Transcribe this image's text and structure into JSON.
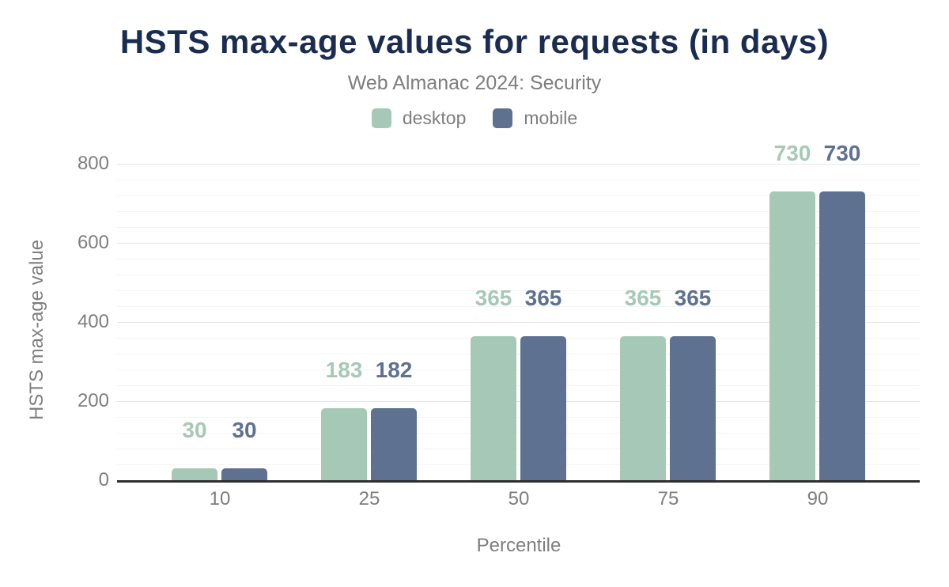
{
  "header": {
    "title": "HSTS max-age values for requests (in days)",
    "subtitle": "Web Almanac 2024: Security"
  },
  "chart_data": {
    "type": "bar",
    "title": "HSTS max-age values for requests (in days)",
    "subtitle": "Web Almanac 2024: Security",
    "categories": [
      "10",
      "25",
      "50",
      "75",
      "90"
    ],
    "series": [
      {
        "name": "desktop",
        "color": "#a6c9b7",
        "values": [
          30,
          183,
          365,
          365,
          730
        ]
      },
      {
        "name": "mobile",
        "color": "#5f7190",
        "values": [
          30,
          182,
          365,
          365,
          730
        ]
      }
    ],
    "xlabel": "Percentile",
    "ylabel": "HSTS max-age value",
    "ylim": [
      0,
      800
    ],
    "yticks": [
      0,
      200,
      400,
      600,
      800
    ],
    "minor_grid_step": 40,
    "grid": true,
    "legend_position": "top",
    "data_labels_shown": true
  },
  "colors": {
    "title": "#1a2c4f",
    "muted_text": "#7e7e7e",
    "axis_line": "#2e2e2e",
    "major_grid": "#e6e6e6",
    "minor_grid": "#f4f4f4",
    "background": "#ffffff"
  }
}
